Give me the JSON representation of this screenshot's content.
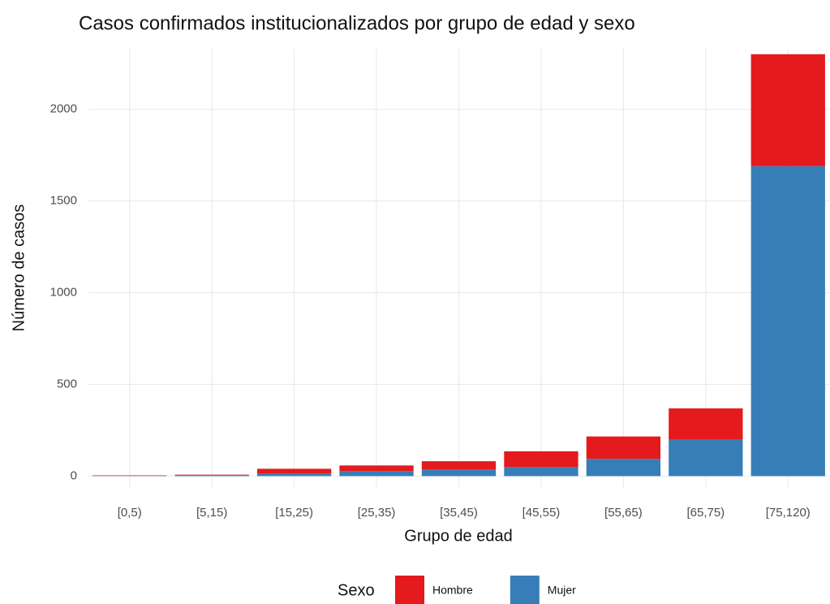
{
  "chart_data": {
    "type": "stacked_bar",
    "title": "Casos confirmados institucionalizados por grupo de edad y sexo",
    "x_label": "Grupo de edad",
    "y_label": "Número de casos",
    "legend_title": "Sexo",
    "categories": [
      "[0,5)",
      "[5,15)",
      "[15,25)",
      "[25,35)",
      "[35,45)",
      "[45,55)",
      "[55,65)",
      "[65,75)",
      "[75,120)"
    ],
    "series": [
      {
        "name": "Mujer",
        "color": "#377eb8",
        "values": [
          1,
          6,
          15,
          27,
          36,
          49,
          94,
          198,
          1690
        ]
      },
      {
        "name": "Hombre",
        "color": "#e41a1c",
        "values": [
          3,
          2,
          25,
          31,
          45,
          86,
          122,
          171,
          610
        ]
      }
    ],
    "legend_order": [
      "Hombre",
      "Mujer"
    ],
    "ylim": [
      -60,
      2330
    ],
    "yticks": [
      0,
      500,
      1000,
      1500,
      2000
    ],
    "grid": true,
    "legend": "bottom"
  }
}
